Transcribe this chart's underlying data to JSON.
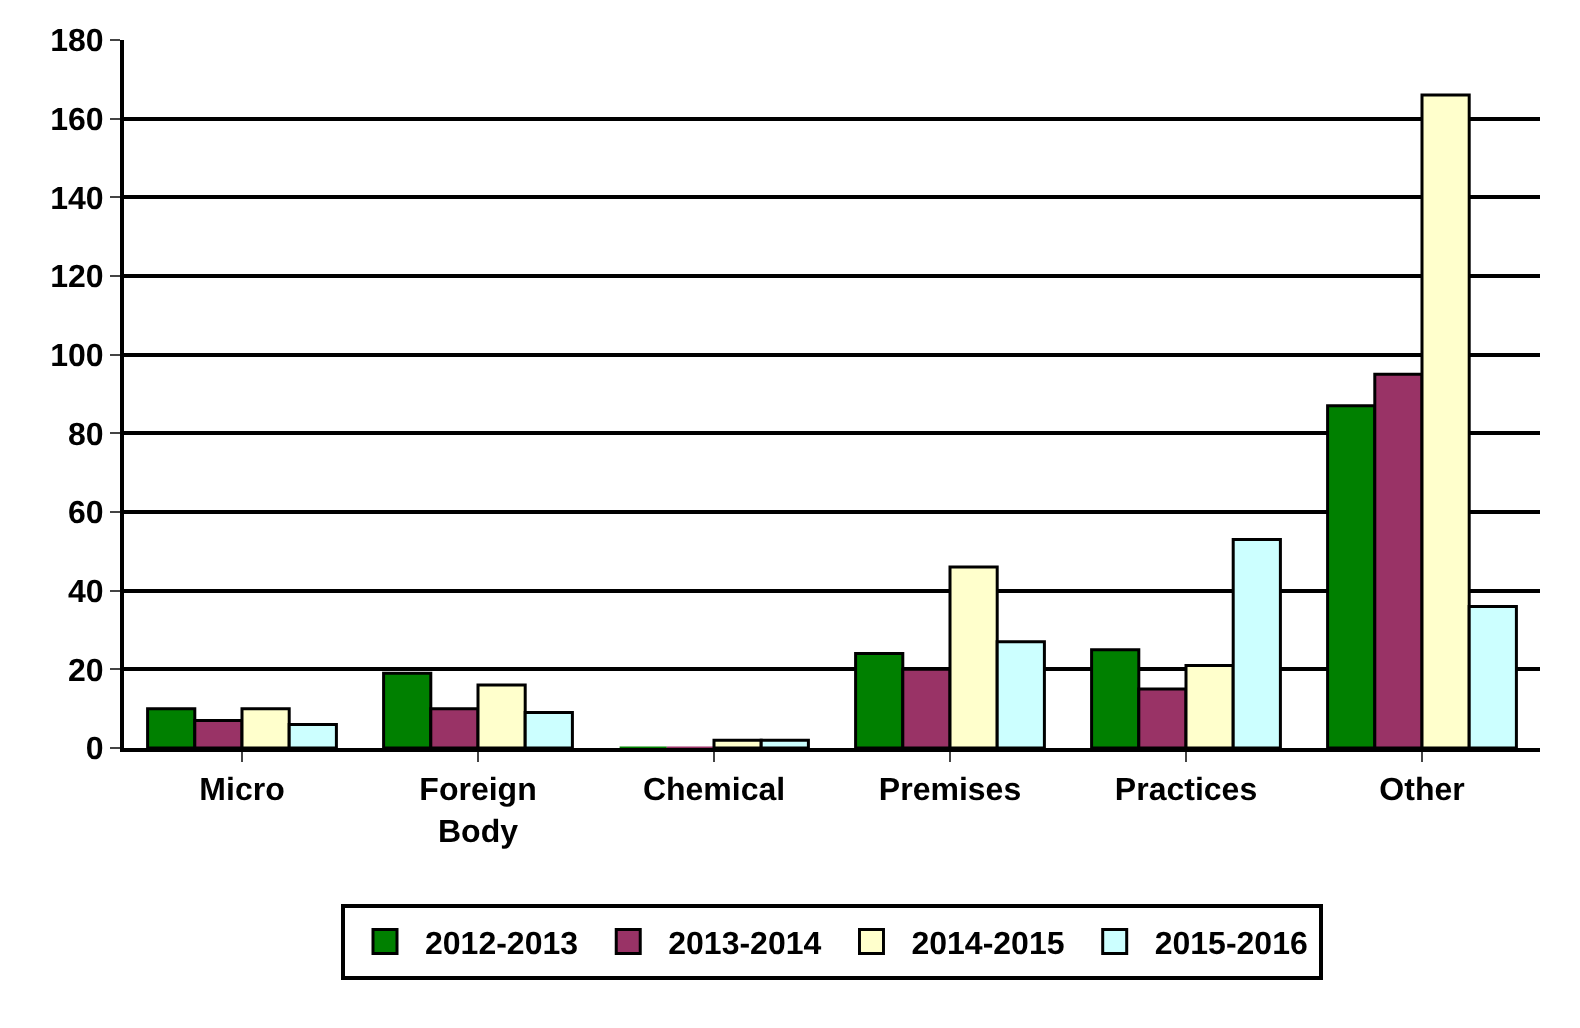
{
  "chart_data": {
    "type": "bar",
    "categories": [
      "Micro",
      "Foreign Body",
      "Chemical",
      "Premises",
      "Practices",
      "Other"
    ],
    "series": [
      {
        "name": "2012-2013",
        "color": "#008000",
        "values": [
          10,
          19,
          0,
          24,
          25,
          87
        ]
      },
      {
        "name": "2013-2014",
        "color": "#993366",
        "values": [
          7,
          10,
          0,
          20,
          15,
          95
        ]
      },
      {
        "name": "2014-2015",
        "color": "#ffffcc",
        "values": [
          10,
          16,
          2,
          46,
          21,
          166
        ]
      },
      {
        "name": "2015-2016",
        "color": "#ccffff",
        "values": [
          6,
          9,
          2,
          27,
          53,
          36
        ]
      }
    ],
    "ylim": [
      0,
      180
    ],
    "yticks": [
      0,
      20,
      40,
      60,
      80,
      100,
      120,
      140,
      160,
      180
    ],
    "grid": "y",
    "legend": "bottom"
  }
}
